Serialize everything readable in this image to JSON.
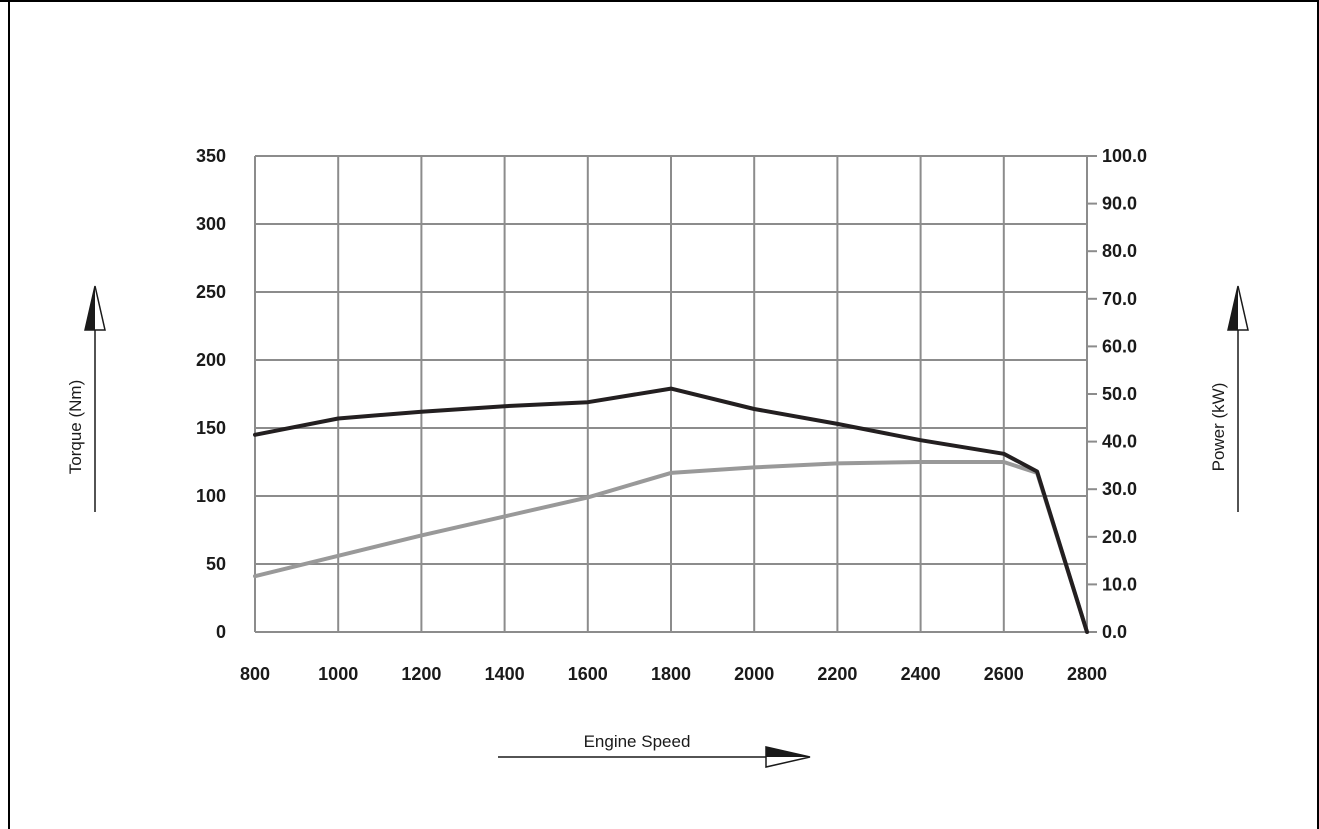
{
  "chart_data": {
    "type": "line",
    "title": "",
    "xlabel": "Engine Speed",
    "ylabel": "Torque (Nm)",
    "y2label": "Power (kW)",
    "xlim": [
      800,
      2800
    ],
    "ylim": [
      0,
      350
    ],
    "y2lim": [
      0,
      100
    ],
    "x_ticks": [
      "800",
      "1000",
      "1200",
      "1400",
      "1600",
      "1800",
      "2000",
      "2200",
      "2400",
      "2600",
      "2800"
    ],
    "y_ticks": [
      "0",
      "50",
      "100",
      "150",
      "200",
      "250",
      "300",
      "350"
    ],
    "y2_ticks": [
      "0.0",
      "10.0",
      "20.0",
      "30.0",
      "40.0",
      "50.0",
      "60.0",
      "70.0",
      "80.0",
      "90.0",
      "100.0"
    ],
    "grid": true,
    "series": [
      {
        "axis": "left",
        "color": "#231f20",
        "points": [
          [
            800,
            145
          ],
          [
            1000,
            157
          ],
          [
            1200,
            162
          ],
          [
            1400,
            166
          ],
          [
            1600,
            169
          ],
          [
            1800,
            179
          ],
          [
            2000,
            164
          ],
          [
            2200,
            153
          ],
          [
            2400,
            141
          ],
          [
            2600,
            131
          ],
          [
            2680,
            118
          ],
          [
            2800,
            0
          ]
        ]
      },
      {
        "axis": "left",
        "color": "#999999",
        "points": [
          [
            800,
            41
          ],
          [
            1000,
            56
          ],
          [
            1200,
            71
          ],
          [
            1400,
            85
          ],
          [
            1600,
            99
          ],
          [
            1800,
            117
          ],
          [
            2000,
            121
          ],
          [
            2200,
            124
          ],
          [
            2400,
            125
          ],
          [
            2600,
            125
          ],
          [
            2680,
            117
          ],
          [
            2800,
            0
          ]
        ]
      }
    ]
  }
}
